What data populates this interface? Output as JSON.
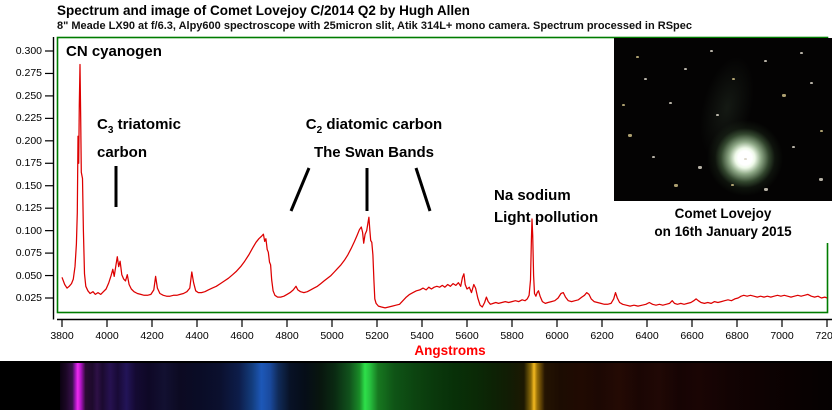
{
  "header": {
    "title": "Spectrum and image of Comet Lovejoy C/2014 Q2 by Hugh Allen",
    "subtitle": "8\" Meade LX90 at f/6.3, Alpy600 spectroscope with 25micron slit, Atik 314L+ mono camera. Spectrum processed in RSpec"
  },
  "chart": {
    "y_ticks": [
      "0.300",
      "0.275",
      "0.250",
      "0.225",
      "0.200",
      "0.175",
      "0.150",
      "0.125",
      "0.100",
      "0.075",
      "0.050",
      "0.025"
    ],
    "x_ticks": [
      "3800",
      "4000",
      "4200",
      "4400",
      "4600",
      "4800",
      "5000",
      "5200",
      "5400",
      "5600",
      "5800",
      "6000",
      "6200",
      "6400",
      "6600",
      "6800",
      "7000",
      "7200"
    ],
    "x_axis_label": "Angstroms",
    "line_color": "#dd0000",
    "border_color": "#007c00",
    "axis_color": "#000000",
    "x_axis_label_color": "#ff0000"
  },
  "annotations": {
    "cn": {
      "text": "CN cyanogen"
    },
    "c3": {
      "base": "C",
      "sub": "3",
      "rest": " triatomic",
      "line2": "carbon"
    },
    "c2": {
      "base": "C",
      "sub": "2",
      "rest": "  diatomic carbon",
      "line2": "The Swan Bands"
    },
    "na": {
      "line1": "Na sodium",
      "line2": "Light pollution"
    }
  },
  "inset": {
    "caption_line1": "Comet Lovejoy",
    "caption_line2": "on 16th January 2015",
    "stars": [
      [
        22,
        18,
        2
      ],
      [
        55,
        64,
        2
      ],
      [
        38,
        118,
        2
      ],
      [
        14,
        96,
        3
      ],
      [
        70,
        30,
        2
      ],
      [
        96,
        12,
        2
      ],
      [
        118,
        40,
        2
      ],
      [
        102,
        76,
        2
      ],
      [
        84,
        128,
        3
      ],
      [
        60,
        146,
        3
      ],
      [
        130,
        120,
        2
      ],
      [
        150,
        22,
        2
      ],
      [
        168,
        56,
        3
      ],
      [
        186,
        14,
        2
      ],
      [
        196,
        44,
        2
      ],
      [
        206,
        92,
        2
      ],
      [
        178,
        108,
        2
      ],
      [
        150,
        150,
        3
      ],
      [
        117,
        146,
        2
      ],
      [
        205,
        140,
        3
      ],
      [
        30,
        40,
        2
      ],
      [
        8,
        66,
        2
      ]
    ]
  },
  "strip": {
    "stops": [
      [
        0.0,
        "#0b0210"
      ],
      [
        0.008,
        "#1c0726"
      ],
      [
        0.016,
        "#38104a"
      ],
      [
        0.02,
        "#a018b8"
      ],
      [
        0.023,
        "#ee2bf0"
      ],
      [
        0.027,
        "#b014c4"
      ],
      [
        0.033,
        "#2a0b33"
      ],
      [
        0.042,
        "#1d0a2c"
      ],
      [
        0.048,
        "#2e1046"
      ],
      [
        0.055,
        "#1b0a30"
      ],
      [
        0.065,
        "#261150"
      ],
      [
        0.075,
        "#180a36"
      ],
      [
        0.086,
        "#231458"
      ],
      [
        0.098,
        "#140a32"
      ],
      [
        0.115,
        "#0e0826"
      ],
      [
        0.135,
        "#121031"
      ],
      [
        0.155,
        "#0c0a22"
      ],
      [
        0.18,
        "#0a0c26"
      ],
      [
        0.207,
        "#0b102e"
      ],
      [
        0.232,
        "#0d1d4a"
      ],
      [
        0.249,
        "#133d7e"
      ],
      [
        0.261,
        "#1d58b8"
      ],
      [
        0.272,
        "#1a4a9e"
      ],
      [
        0.283,
        "#102a58"
      ],
      [
        0.298,
        "#081226"
      ],
      [
        0.317,
        "#060d18"
      ],
      [
        0.337,
        "#08150e"
      ],
      [
        0.356,
        "#0a2a12"
      ],
      [
        0.375,
        "#11521c"
      ],
      [
        0.388,
        "#1a8c28"
      ],
      [
        0.395,
        "#2ee04a"
      ],
      [
        0.401,
        "#28c440"
      ],
      [
        0.412,
        "#177820"
      ],
      [
        0.433,
        "#0f5416"
      ],
      [
        0.46,
        "#0c4410"
      ],
      [
        0.486,
        "#0a380c"
      ],
      [
        0.512,
        "#083008"
      ],
      [
        0.538,
        "#0a2a06"
      ],
      [
        0.562,
        "#0d2205"
      ],
      [
        0.583,
        "#121c04"
      ],
      [
        0.601,
        "#1c1802"
      ],
      [
        0.61,
        "#8a6a08"
      ],
      [
        0.614,
        "#f4ba20"
      ],
      [
        0.618,
        "#9a7208"
      ],
      [
        0.628,
        "#241402"
      ],
      [
        0.648,
        "#1c0c02"
      ],
      [
        0.674,
        "#200a02"
      ],
      [
        0.699,
        "#1c0803"
      ],
      [
        0.724,
        "#240a04"
      ],
      [
        0.75,
        "#1a0603"
      ],
      [
        0.776,
        "#200805"
      ],
      [
        0.802,
        "#160403"
      ],
      [
        0.828,
        "#1a0504"
      ],
      [
        0.868,
        "#120303"
      ],
      [
        0.906,
        "#0e0202"
      ],
      [
        0.945,
        "#0a0101"
      ],
      [
        1.0,
        "#050101"
      ]
    ]
  },
  "chart_data": {
    "type": "line",
    "title": "Spectrum and image of Comet Lovejoy C/2014 Q2 by Hugh Allen",
    "xlabel": "Angstroms",
    "ylabel": "",
    "xlim": [
      3800,
      7200
    ],
    "ylim": [
      0.01,
      0.315
    ],
    "x_tick_step": 200,
    "y_tick_values": [
      0.3,
      0.275,
      0.25,
      0.225,
      0.2,
      0.175,
      0.15,
      0.125,
      0.1,
      0.075,
      0.05,
      0.025
    ],
    "grid": false,
    "legend": false,
    "series_color": "#dd0000",
    "features": [
      {
        "wavelength": 3880,
        "label": "CN cyanogen",
        "peak": 0.285
      },
      {
        "wavelength": 4050,
        "label": "C3 triatomic carbon",
        "peak": 0.071
      },
      {
        "wavelength": 4695,
        "label": "C2 diatomic carbon Swan band",
        "peak": 0.096
      },
      {
        "wavelength": 5165,
        "label": "C2 diatomic carbon Swan band",
        "peak": 0.115
      },
      {
        "wavelength": 5890,
        "label": "Na sodium light pollution",
        "peak": 0.113
      }
    ],
    "x": [
      3800,
      3812,
      3822,
      3832,
      3842,
      3850,
      3858,
      3864,
      3868,
      3871,
      3874,
      3877,
      3880,
      3883,
      3886,
      3891,
      3895,
      3900,
      3906,
      3915,
      3925,
      3938,
      3948,
      3960,
      3972,
      3984,
      3996,
      4008,
      4018,
      4026,
      4032,
      4040,
      4046,
      4052,
      4058,
      4066,
      4074,
      4082,
      4090,
      4098,
      4108,
      4120,
      4135,
      4150,
      4165,
      4180,
      4195,
      4208,
      4216,
      4224,
      4235,
      4250,
      4265,
      4280,
      4295,
      4310,
      4325,
      4340,
      4355,
      4368,
      4377,
      4385,
      4394,
      4406,
      4420,
      4435,
      4450,
      4468,
      4486,
      4504,
      4522,
      4540,
      4558,
      4576,
      4594,
      4612,
      4630,
      4648,
      4662,
      4675,
      4688,
      4695,
      4701,
      4706,
      4712,
      4717,
      4722,
      4727,
      4732,
      4738,
      4746,
      4758,
      4772,
      4786,
      4800,
      4814,
      4828,
      4840,
      4848,
      4860,
      4875,
      4890,
      4905,
      4920,
      4935,
      4950,
      4965,
      4980,
      4995,
      5010,
      5025,
      5040,
      5055,
      5070,
      5085,
      5100,
      5112,
      5122,
      5130,
      5136,
      5141,
      5147,
      5154,
      5160,
      5164,
      5168,
      5172,
      5177,
      5182,
      5186,
      5190,
      5196,
      5206,
      5220,
      5236,
      5252,
      5268,
      5284,
      5300,
      5315,
      5330,
      5345,
      5360,
      5375,
      5390,
      5405,
      5418,
      5430,
      5442,
      5454,
      5466,
      5478,
      5490,
      5502,
      5514,
      5526,
      5538,
      5550,
      5562,
      5572,
      5580,
      5586,
      5592,
      5600,
      5610,
      5620,
      5630,
      5638,
      5648,
      5658,
      5668,
      5678,
      5686,
      5694,
      5704,
      5716,
      5728,
      5740,
      5755,
      5770,
      5785,
      5800,
      5815,
      5830,
      5845,
      5858,
      5868,
      5876,
      5882,
      5886,
      5889,
      5892,
      5896,
      5900,
      5906,
      5912,
      5918,
      5925,
      5935,
      5948,
      5960,
      5975,
      5990,
      6005,
      6018,
      6028,
      6038,
      6050,
      6065,
      6080,
      6095,
      6110,
      6122,
      6132,
      6142,
      6152,
      6165,
      6180,
      6195,
      6210,
      6225,
      6240,
      6252,
      6260,
      6268,
      6278,
      6292,
      6308,
      6325,
      6342,
      6360,
      6378,
      6395,
      6410,
      6425,
      6440,
      6455,
      6470,
      6485,
      6500,
      6512,
      6522,
      6535,
      6550,
      6565,
      6580,
      6595,
      6608,
      6618,
      6628,
      6640,
      6655,
      6670,
      6685,
      6700,
      6715,
      6730,
      6745,
      6760,
      6775,
      6790,
      6805,
      6818,
      6830,
      6845,
      6860,
      6875,
      6890,
      6905,
      6920,
      6935,
      6950,
      6965,
      6980,
      6995,
      7010,
      7025,
      7040,
      7055,
      7070,
      7085,
      7100,
      7115,
      7130,
      7145,
      7160,
      7175,
      7190,
      7200
    ],
    "y": [
      0.048,
      0.04,
      0.036,
      0.038,
      0.041,
      0.046,
      0.06,
      0.085,
      0.12,
      0.205,
      0.175,
      0.24,
      0.285,
      0.225,
      0.165,
      0.158,
      0.1,
      0.052,
      0.038,
      0.033,
      0.03,
      0.032,
      0.029,
      0.031,
      0.029,
      0.032,
      0.035,
      0.042,
      0.05,
      0.057,
      0.049,
      0.062,
      0.071,
      0.06,
      0.066,
      0.051,
      0.046,
      0.044,
      0.051,
      0.04,
      0.035,
      0.032,
      0.03,
      0.029,
      0.028,
      0.028,
      0.029,
      0.034,
      0.049,
      0.036,
      0.03,
      0.028,
      0.027,
      0.027,
      0.028,
      0.028,
      0.029,
      0.03,
      0.032,
      0.036,
      0.054,
      0.042,
      0.033,
      0.031,
      0.031,
      0.032,
      0.034,
      0.036,
      0.038,
      0.041,
      0.044,
      0.047,
      0.051,
      0.055,
      0.06,
      0.066,
      0.073,
      0.081,
      0.087,
      0.091,
      0.094,
      0.096,
      0.088,
      0.091,
      0.079,
      0.076,
      0.065,
      0.062,
      0.045,
      0.033,
      0.028,
      0.026,
      0.026,
      0.027,
      0.029,
      0.031,
      0.034,
      0.038,
      0.034,
      0.032,
      0.031,
      0.032,
      0.034,
      0.036,
      0.038,
      0.041,
      0.044,
      0.047,
      0.05,
      0.054,
      0.058,
      0.062,
      0.067,
      0.073,
      0.08,
      0.088,
      0.095,
      0.101,
      0.104,
      0.098,
      0.086,
      0.096,
      0.1,
      0.109,
      0.115,
      0.101,
      0.089,
      0.087,
      0.073,
      0.045,
      0.024,
      0.019,
      0.016,
      0.015,
      0.014,
      0.015,
      0.016,
      0.017,
      0.018,
      0.022,
      0.026,
      0.029,
      0.031,
      0.033,
      0.034,
      0.036,
      0.034,
      0.037,
      0.035,
      0.037,
      0.038,
      0.037,
      0.039,
      0.037,
      0.04,
      0.038,
      0.041,
      0.039,
      0.042,
      0.038,
      0.048,
      0.052,
      0.04,
      0.035,
      0.037,
      0.031,
      0.04,
      0.036,
      0.025,
      0.017,
      0.015,
      0.02,
      0.026,
      0.021,
      0.018,
      0.019,
      0.02,
      0.019,
      0.02,
      0.021,
      0.02,
      0.021,
      0.022,
      0.021,
      0.023,
      0.022,
      0.024,
      0.028,
      0.045,
      0.09,
      0.113,
      0.095,
      0.05,
      0.03,
      0.027,
      0.031,
      0.033,
      0.027,
      0.021,
      0.019,
      0.02,
      0.021,
      0.022,
      0.025,
      0.03,
      0.031,
      0.026,
      0.022,
      0.021,
      0.022,
      0.023,
      0.026,
      0.028,
      0.031,
      0.029,
      0.024,
      0.021,
      0.02,
      0.019,
      0.018,
      0.018,
      0.019,
      0.024,
      0.031,
      0.025,
      0.02,
      0.018,
      0.017,
      0.016,
      0.017,
      0.016,
      0.017,
      0.018,
      0.02,
      0.018,
      0.017,
      0.018,
      0.017,
      0.018,
      0.019,
      0.022,
      0.019,
      0.018,
      0.019,
      0.018,
      0.019,
      0.02,
      0.022,
      0.024,
      0.022,
      0.02,
      0.019,
      0.02,
      0.019,
      0.021,
      0.02,
      0.021,
      0.022,
      0.023,
      0.022,
      0.024,
      0.025,
      0.027,
      0.028,
      0.027,
      0.028,
      0.027,
      0.026,
      0.027,
      0.026,
      0.027,
      0.026,
      0.027,
      0.028,
      0.027,
      0.028,
      0.027,
      0.026,
      0.027,
      0.028,
      0.027,
      0.028,
      0.029,
      0.027,
      0.026,
      0.027,
      0.025,
      0.026,
      0.025
    ]
  }
}
